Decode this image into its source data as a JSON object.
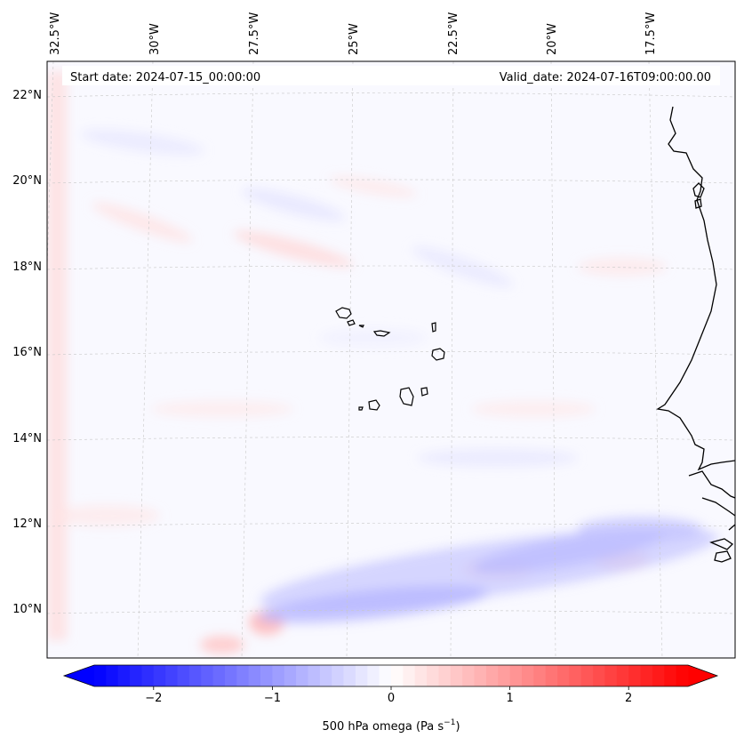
{
  "map": {
    "start_date_label": "Start date: 2024-07-15_00:00:00",
    "valid_date_label": "Valid_date: 2024-07-16T09:00:00.00",
    "lon_labels": [
      "32.5°W",
      "30°W",
      "27.5°W",
      "25°W",
      "22.5°W",
      "20°W",
      "17.5°W"
    ],
    "lat_labels": [
      "22°N",
      "20°N",
      "18°N",
      "16°N",
      "14°N",
      "12°N",
      "10°N"
    ],
    "field_colors": {
      "negative": "#0000ff",
      "zero": "#ffffff",
      "positive": "#ff0000"
    }
  },
  "colorbar": {
    "label": "500 hPa omega (Pa s",
    "label_sup": "−1",
    "label_end": ")",
    "ticks": [
      "−2",
      "−1",
      "0",
      "1",
      "2"
    ],
    "min": -2.6,
    "max": 2.6,
    "tick_values": [
      -2,
      -1,
      0,
      1,
      2
    ]
  }
}
